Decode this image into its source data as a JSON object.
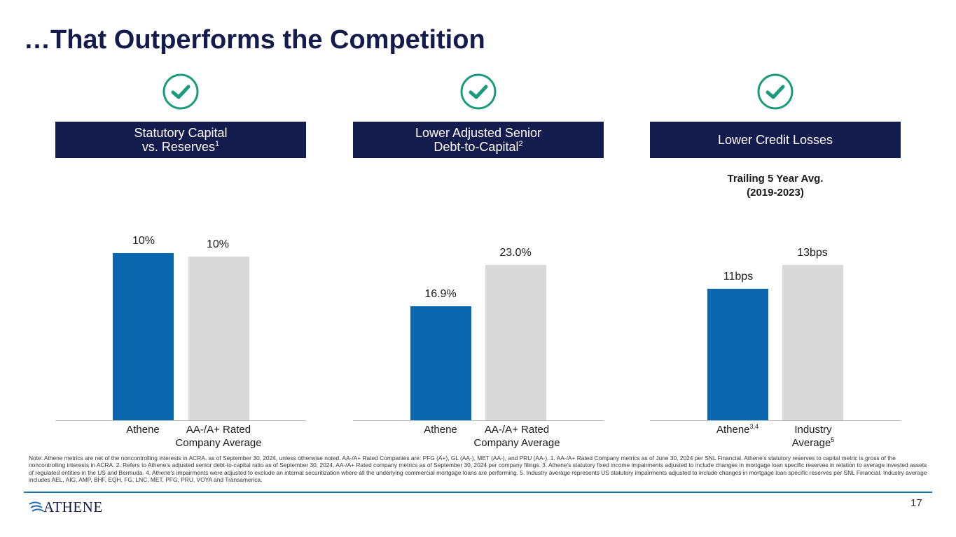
{
  "page": {
    "title": "…That Outperforms the Competition",
    "page_number": "17",
    "logo_text": "ATHENE",
    "note": "Note: Athene metrics are net of the noncontrolling interests in ACRA, as of September 30, 2024, unless otherwise noted. AA-/A+ Rated Companies are: PFG (A+), GL (AA-), MET (AA-), and PRU (AA-). 1. AA-/A+ Rated Company metrics as of June 30, 2024 per SNL Financial. Athene's statutory reserves to capital metric is gross of the noncontrolling interests in ACRA. 2. Refers to Athene's adjusted senior debt-to-capital ratio as of September 30, 2024. AA-/A+ Rated company metrics as of September 30, 2024 per company filings. 3. Athene's statutory fixed income impairments adjusted to include changes in mortgage loan specific reserves in relation to average invested assets of regulated entities in the US and Bermuda. 4. Athene's impairments were adjusted to exclude an internal securitization where all the underlying commercial mortgage loans are performing. 5. Industry average represents US statutory impairments adjusted to include changes in mortgage loan specific reserves per SNL Financial. Industry average includes AEL, AIG, AMP, BHF, EQH, FG, LNC, MET, PFG, PRU, VOYA and Transamerica."
  },
  "colors": {
    "navy": "#141b4d",
    "athene_blue": "#0a66ad",
    "peer_gray": "#d9d9d9",
    "check_green": "#1a9b7d",
    "rule_blue": "#1f6fb5"
  },
  "chart_data": [
    {
      "type": "bar",
      "title": "Statutory Capital vs. Reserves",
      "title_lines": [
        "Statutory Capital",
        "vs. Reserves"
      ],
      "title_superscript": "1",
      "subtitle_lines": [],
      "categories": [
        "Athene",
        "AA-/A+ Rated Company Average"
      ],
      "category_lines": [
        [
          "Athene"
        ],
        [
          "AA-/A+ Rated",
          "Company Average"
        ]
      ],
      "category_superscripts": [
        "",
        ""
      ],
      "values": [
        10.3,
        10.1
      ],
      "value_labels": [
        "10%",
        "10%"
      ],
      "unit": "%",
      "ylim": [
        0,
        12
      ]
    },
    {
      "type": "bar",
      "title": "Lower Adjusted Senior Debt-to-Capital",
      "title_lines": [
        "Lower Adjusted Senior",
        "Debt-to-Capital"
      ],
      "title_superscript": "2",
      "subtitle_lines": [],
      "categories": [
        "Athene",
        "AA-/A+ Rated Company Average"
      ],
      "category_lines": [
        [
          "Athene"
        ],
        [
          "AA-/A+ Rated",
          "Company Average"
        ]
      ],
      "category_superscripts": [
        "",
        ""
      ],
      "values": [
        16.9,
        23.0
      ],
      "value_labels": [
        "16.9%",
        "23.0%"
      ],
      "unit": "%",
      "ylim": [
        0,
        28.8
      ]
    },
    {
      "type": "bar",
      "title": "Lower Credit Losses",
      "title_lines": [
        "Lower Credit Losses"
      ],
      "title_superscript": "",
      "subtitle_lines": [
        "Trailing 5 Year Avg.",
        "(2019-2023)"
      ],
      "categories": [
        "Athene",
        "Industry Average"
      ],
      "category_lines": [
        [
          "Athene"
        ],
        [
          "Industry",
          "Average"
        ]
      ],
      "category_superscripts": [
        "3,4",
        "5"
      ],
      "values": [
        11,
        13
      ],
      "value_labels": [
        "11bps",
        "13bps"
      ],
      "unit": "bps",
      "ylim": [
        0,
        16.3
      ]
    }
  ]
}
